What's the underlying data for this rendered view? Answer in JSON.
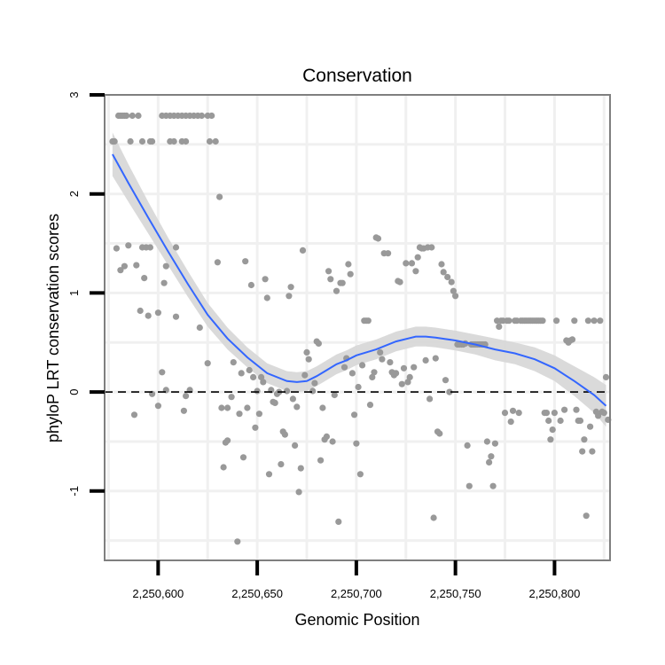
{
  "chart_data": {
    "type": "scatter",
    "title": "Conservation",
    "xlabel": "Genomic Position",
    "ylabel": "phyloP LRT conservation scores",
    "xlim": [
      2250573,
      2250828
    ],
    "ylim": [
      -1.7,
      3.0
    ],
    "x_ticks": [
      2250600,
      2250650,
      2250700,
      2250750,
      2250800
    ],
    "x_tick_labels": [
      "2,250,600",
      "2,250,650",
      "2,250,700",
      "2,250,750",
      "2,250,800"
    ],
    "y_ticks": [
      -1,
      0,
      1,
      2,
      3
    ],
    "y_tick_labels": [
      "-1",
      "0",
      "1",
      "2",
      "3"
    ],
    "reference_line": {
      "y": 0,
      "style": "dashed",
      "color": "#000000"
    },
    "grid": true,
    "colors": {
      "points": "#999999",
      "smooth_line": "#3366ff",
      "ribbon": "#d6d6d6",
      "grid": "#f0f0f0",
      "frame": "#7f7f7f"
    },
    "points": [
      [
        2250577,
        2.53
      ],
      [
        2250578,
        2.53
      ],
      [
        2250580,
        2.79
      ],
      [
        2250581,
        2.79
      ],
      [
        2250582,
        2.79
      ],
      [
        2250583,
        2.79
      ],
      [
        2250584,
        2.79
      ],
      [
        2250587,
        2.79
      ],
      [
        2250590,
        2.79
      ],
      [
        2250586,
        2.53
      ],
      [
        2250592,
        2.53
      ],
      [
        2250596,
        2.53
      ],
      [
        2250597,
        2.53
      ],
      [
        2250602,
        2.79
      ],
      [
        2250604,
        2.79
      ],
      [
        2250606,
        2.79
      ],
      [
        2250608,
        2.79
      ],
      [
        2250610,
        2.79
      ],
      [
        2250612,
        2.79
      ],
      [
        2250614,
        2.79
      ],
      [
        2250616,
        2.79
      ],
      [
        2250618,
        2.79
      ],
      [
        2250620,
        2.79
      ],
      [
        2250622,
        2.79
      ],
      [
        2250625,
        2.79
      ],
      [
        2250627,
        2.79
      ],
      [
        2250606,
        2.53
      ],
      [
        2250608,
        2.53
      ],
      [
        2250612,
        2.53
      ],
      [
        2250614,
        2.53
      ],
      [
        2250626,
        2.53
      ],
      [
        2250629,
        2.53
      ],
      [
        2250579,
        1.45
      ],
      [
        2250581,
        1.23
      ],
      [
        2250585,
        1.48
      ],
      [
        2250589,
        1.28
      ],
      [
        2250592,
        1.46
      ],
      [
        2250594,
        1.46
      ],
      [
        2250596,
        1.46
      ],
      [
        2250583,
        1.27
      ],
      [
        2250593,
        1.15
      ],
      [
        2250591,
        0.82
      ],
      [
        2250595,
        0.77
      ],
      [
        2250600,
        0.8
      ],
      [
        2250604,
        1.27
      ],
      [
        2250603,
        1.1
      ],
      [
        2250609,
        1.46
      ],
      [
        2250609,
        0.76
      ],
      [
        2250621,
        0.65
      ],
      [
        2250630,
        1.31
      ],
      [
        2250631,
        1.97
      ],
      [
        2250588,
        -0.23
      ],
      [
        2250597,
        -0.02
      ],
      [
        2250600,
        -0.14
      ],
      [
        2250602,
        0.2
      ],
      [
        2250604,
        0.02
      ],
      [
        2250614,
        -0.04
      ],
      [
        2250613,
        -0.19
      ],
      [
        2250616,
        0.02
      ],
      [
        2250625,
        0.29
      ],
      [
        2250632,
        -0.16
      ],
      [
        2250633,
        -0.76
      ],
      [
        2250634,
        -0.51
      ],
      [
        2250635,
        -0.49
      ],
      [
        2250635,
        -0.16
      ],
      [
        2250637,
        -0.05
      ],
      [
        2250638,
        0.3
      ],
      [
        2250640,
        -1.51
      ],
      [
        2250641,
        -0.22
      ],
      [
        2250642,
        0.19
      ],
      [
        2250643,
        -0.66
      ],
      [
        2250644,
        1.32
      ],
      [
        2250645,
        -0.16
      ],
      [
        2250646,
        0.22
      ],
      [
        2250647,
        1.08
      ],
      [
        2250648,
        0.15
      ],
      [
        2250649,
        -0.36
      ],
      [
        2250650,
        0.01
      ],
      [
        2250651,
        -0.22
      ],
      [
        2250652,
        0.15
      ],
      [
        2250653,
        0.1
      ],
      [
        2250654,
        1.14
      ],
      [
        2250655,
        0.95
      ],
      [
        2250656,
        -0.83
      ],
      [
        2250657,
        0.02
      ],
      [
        2250658,
        -0.1
      ],
      [
        2250659,
        -0.11
      ],
      [
        2250660,
        -0.02
      ],
      [
        2250661,
        0.0
      ],
      [
        2250662,
        -0.73
      ],
      [
        2250663,
        -0.4
      ],
      [
        2250664,
        -0.43
      ],
      [
        2250665,
        0.01
      ],
      [
        2250666,
        0.97
      ],
      [
        2250667,
        1.06
      ],
      [
        2250668,
        -0.07
      ],
      [
        2250669,
        -0.54
      ],
      [
        2250670,
        -0.15
      ],
      [
        2250671,
        -1.01
      ],
      [
        2250672,
        -0.77
      ],
      [
        2250673,
        1.43
      ],
      [
        2250674,
        0.17
      ],
      [
        2250675,
        0.4
      ],
      [
        2250676,
        0.33
      ],
      [
        2250678,
        0.01
      ],
      [
        2250679,
        0.09
      ],
      [
        2250680,
        0.51
      ],
      [
        2250681,
        0.49
      ],
      [
        2250682,
        -0.69
      ],
      [
        2250683,
        -0.16
      ],
      [
        2250684,
        -0.48
      ],
      [
        2250685,
        -0.45
      ],
      [
        2250686,
        1.22
      ],
      [
        2250687,
        1.14
      ],
      [
        2250688,
        -0.5
      ],
      [
        2250689,
        -0.03
      ],
      [
        2250690,
        1.02
      ],
      [
        2250691,
        -1.31
      ],
      [
        2250692,
        1.1
      ],
      [
        2250693,
        1.1
      ],
      [
        2250694,
        0.25
      ],
      [
        2250695,
        0.34
      ],
      [
        2250696,
        1.29
      ],
      [
        2250697,
        1.19
      ],
      [
        2250698,
        0.19
      ],
      [
        2250699,
        -0.23
      ],
      [
        2250700,
        -0.52
      ],
      [
        2250701,
        0.05
      ],
      [
        2250702,
        -0.83
      ],
      [
        2250703,
        0.27
      ],
      [
        2250704,
        0.72
      ],
      [
        2250705,
        0.72
      ],
      [
        2250706,
        0.72
      ],
      [
        2250707,
        -0.13
      ],
      [
        2250708,
        0.15
      ],
      [
        2250709,
        0.2
      ],
      [
        2250710,
        1.56
      ],
      [
        2250711,
        1.55
      ],
      [
        2250712,
        0.4
      ],
      [
        2250713,
        0.33
      ],
      [
        2250714,
        1.4
      ],
      [
        2250716,
        1.4
      ],
      [
        2250717,
        0.3
      ],
      [
        2250718,
        0.2
      ],
      [
        2250719,
        0.17
      ],
      [
        2250720,
        0.19
      ],
      [
        2250721,
        1.12
      ],
      [
        2250722,
        1.11
      ],
      [
        2250723,
        0.08
      ],
      [
        2250724,
        0.24
      ],
      [
        2250725,
        1.3
      ],
      [
        2250726,
        0.1
      ],
      [
        2250727,
        0.15
      ],
      [
        2250728,
        1.3
      ],
      [
        2250729,
        0.25
      ],
      [
        2250730,
        1.22
      ],
      [
        2250731,
        1.36
      ],
      [
        2250732,
        1.46
      ],
      [
        2250733,
        1.45
      ],
      [
        2250734,
        1.45
      ],
      [
        2250735,
        0.32
      ],
      [
        2250736,
        1.46
      ],
      [
        2250737,
        -0.07
      ],
      [
        2250738,
        1.46
      ],
      [
        2250739,
        -1.27
      ],
      [
        2250740,
        0.34
      ],
      [
        2250741,
        -0.4
      ],
      [
        2250742,
        -0.42
      ],
      [
        2250743,
        1.29
      ],
      [
        2250744,
        1.21
      ],
      [
        2250745,
        0.12
      ],
      [
        2250746,
        1.16
      ],
      [
        2250747,
        0.0
      ],
      [
        2250748,
        1.11
      ],
      [
        2250749,
        1.02
      ],
      [
        2250750,
        0.97
      ],
      [
        2250751,
        0.48
      ],
      [
        2250752,
        0.48
      ],
      [
        2250753,
        0.48
      ],
      [
        2250754,
        0.48
      ],
      [
        2250755,
        0.49
      ],
      [
        2250756,
        -0.54
      ],
      [
        2250757,
        -0.95
      ],
      [
        2250758,
        0.48
      ],
      [
        2250759,
        0.48
      ],
      [
        2250760,
        0.48
      ],
      [
        2250761,
        0.48
      ],
      [
        2250762,
        0.48
      ],
      [
        2250763,
        0.48
      ],
      [
        2250764,
        0.48
      ],
      [
        2250765,
        0.48
      ],
      [
        2250766,
        -0.5
      ],
      [
        2250767,
        -0.71
      ],
      [
        2250768,
        -0.65
      ],
      [
        2250769,
        -0.95
      ],
      [
        2250770,
        -0.52
      ],
      [
        2250771,
        0.72
      ],
      [
        2250772,
        0.66
      ],
      [
        2250773,
        0.72
      ],
      [
        2250774,
        0.72
      ],
      [
        2250775,
        -0.21
      ],
      [
        2250776,
        0.72
      ],
      [
        2250777,
        0.72
      ],
      [
        2250778,
        -0.3
      ],
      [
        2250779,
        -0.19
      ],
      [
        2250780,
        0.72
      ],
      [
        2250781,
        0.72
      ],
      [
        2250782,
        -0.21
      ],
      [
        2250783,
        0.72
      ],
      [
        2250784,
        0.72
      ],
      [
        2250785,
        0.72
      ],
      [
        2250786,
        0.72
      ],
      [
        2250787,
        0.72
      ],
      [
        2250788,
        0.72
      ],
      [
        2250789,
        0.72
      ],
      [
        2250790,
        0.72
      ],
      [
        2250791,
        0.72
      ],
      [
        2250792,
        0.72
      ],
      [
        2250793,
        0.72
      ],
      [
        2250794,
        0.72
      ],
      [
        2250795,
        -0.21
      ],
      [
        2250796,
        -0.21
      ],
      [
        2250797,
        -0.29
      ],
      [
        2250798,
        -0.48
      ],
      [
        2250799,
        -0.38
      ],
      [
        2250800,
        -0.21
      ],
      [
        2250801,
        0.72
      ],
      [
        2250803,
        -0.29
      ],
      [
        2250805,
        -0.18
      ],
      [
        2250806,
        0.52
      ],
      [
        2250807,
        0.5
      ],
      [
        2250808,
        0.52
      ],
      [
        2250809,
        0.53
      ],
      [
        2250810,
        0.72
      ],
      [
        2250811,
        -0.18
      ],
      [
        2250812,
        -0.29
      ],
      [
        2250813,
        -0.29
      ],
      [
        2250814,
        -0.6
      ],
      [
        2250815,
        -0.48
      ],
      [
        2250816,
        -1.25
      ],
      [
        2250817,
        0.72
      ],
      [
        2250818,
        -0.35
      ],
      [
        2250819,
        -0.6
      ],
      [
        2250820,
        0.72
      ],
      [
        2250821,
        -0.2
      ],
      [
        2250822,
        -0.24
      ],
      [
        2250823,
        0.72
      ],
      [
        2250824,
        -0.2
      ],
      [
        2250825,
        -0.21
      ],
      [
        2250826,
        0.15
      ],
      [
        2250827,
        -0.28
      ]
    ],
    "smooth": {
      "x": [
        2250577,
        2250585,
        2250595,
        2250605,
        2250615,
        2250625,
        2250635,
        2250645,
        2250655,
        2250665,
        2250670,
        2250675,
        2250680,
        2250685,
        2250690,
        2250695,
        2250700,
        2250710,
        2250720,
        2250730,
        2250735,
        2250740,
        2250750,
        2250760,
        2250770,
        2250780,
        2250790,
        2250800,
        2250810,
        2250820,
        2250826
      ],
      "y": [
        2.4,
        2.11,
        1.76,
        1.42,
        1.09,
        0.78,
        0.54,
        0.35,
        0.19,
        0.11,
        0.1,
        0.11,
        0.16,
        0.22,
        0.28,
        0.32,
        0.37,
        0.43,
        0.51,
        0.56,
        0.56,
        0.55,
        0.52,
        0.48,
        0.43,
        0.39,
        0.33,
        0.24,
        0.11,
        -0.03,
        -0.14
      ],
      "se": [
        0.22,
        0.19,
        0.16,
        0.14,
        0.13,
        0.12,
        0.11,
        0.1,
        0.1,
        0.1,
        0.1,
        0.1,
        0.1,
        0.1,
        0.1,
        0.1,
        0.1,
        0.1,
        0.1,
        0.1,
        0.1,
        0.1,
        0.1,
        0.1,
        0.11,
        0.11,
        0.12,
        0.13,
        0.15,
        0.18,
        0.21
      ]
    }
  }
}
